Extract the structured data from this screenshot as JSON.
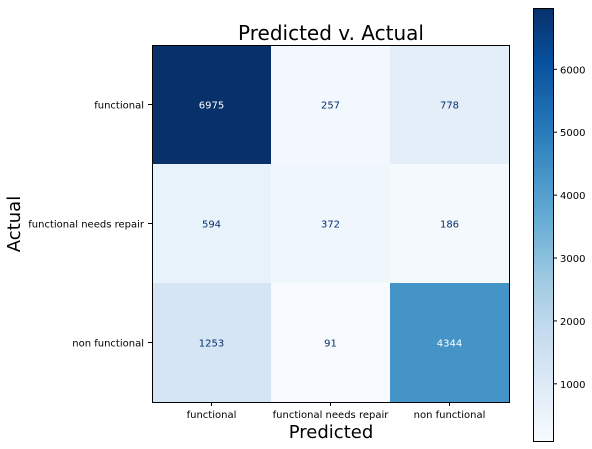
{
  "chart_data": {
    "type": "heatmap",
    "title": "Predicted v. Actual",
    "xlabel": "Predicted",
    "ylabel": "Actual",
    "x_categories": [
      "functional",
      "functional needs repair",
      "non functional"
    ],
    "y_categories": [
      "functional",
      "functional needs repair",
      "non functional"
    ],
    "values": [
      [
        6975,
        257,
        778
      ],
      [
        594,
        372,
        186
      ],
      [
        1253,
        91,
        4344
      ]
    ],
    "colormap": "Blues",
    "colorbar": {
      "range": [
        91,
        6975
      ],
      "ticks": [
        1000,
        2000,
        3000,
        4000,
        5000,
        6000
      ]
    },
    "grid": false
  }
}
